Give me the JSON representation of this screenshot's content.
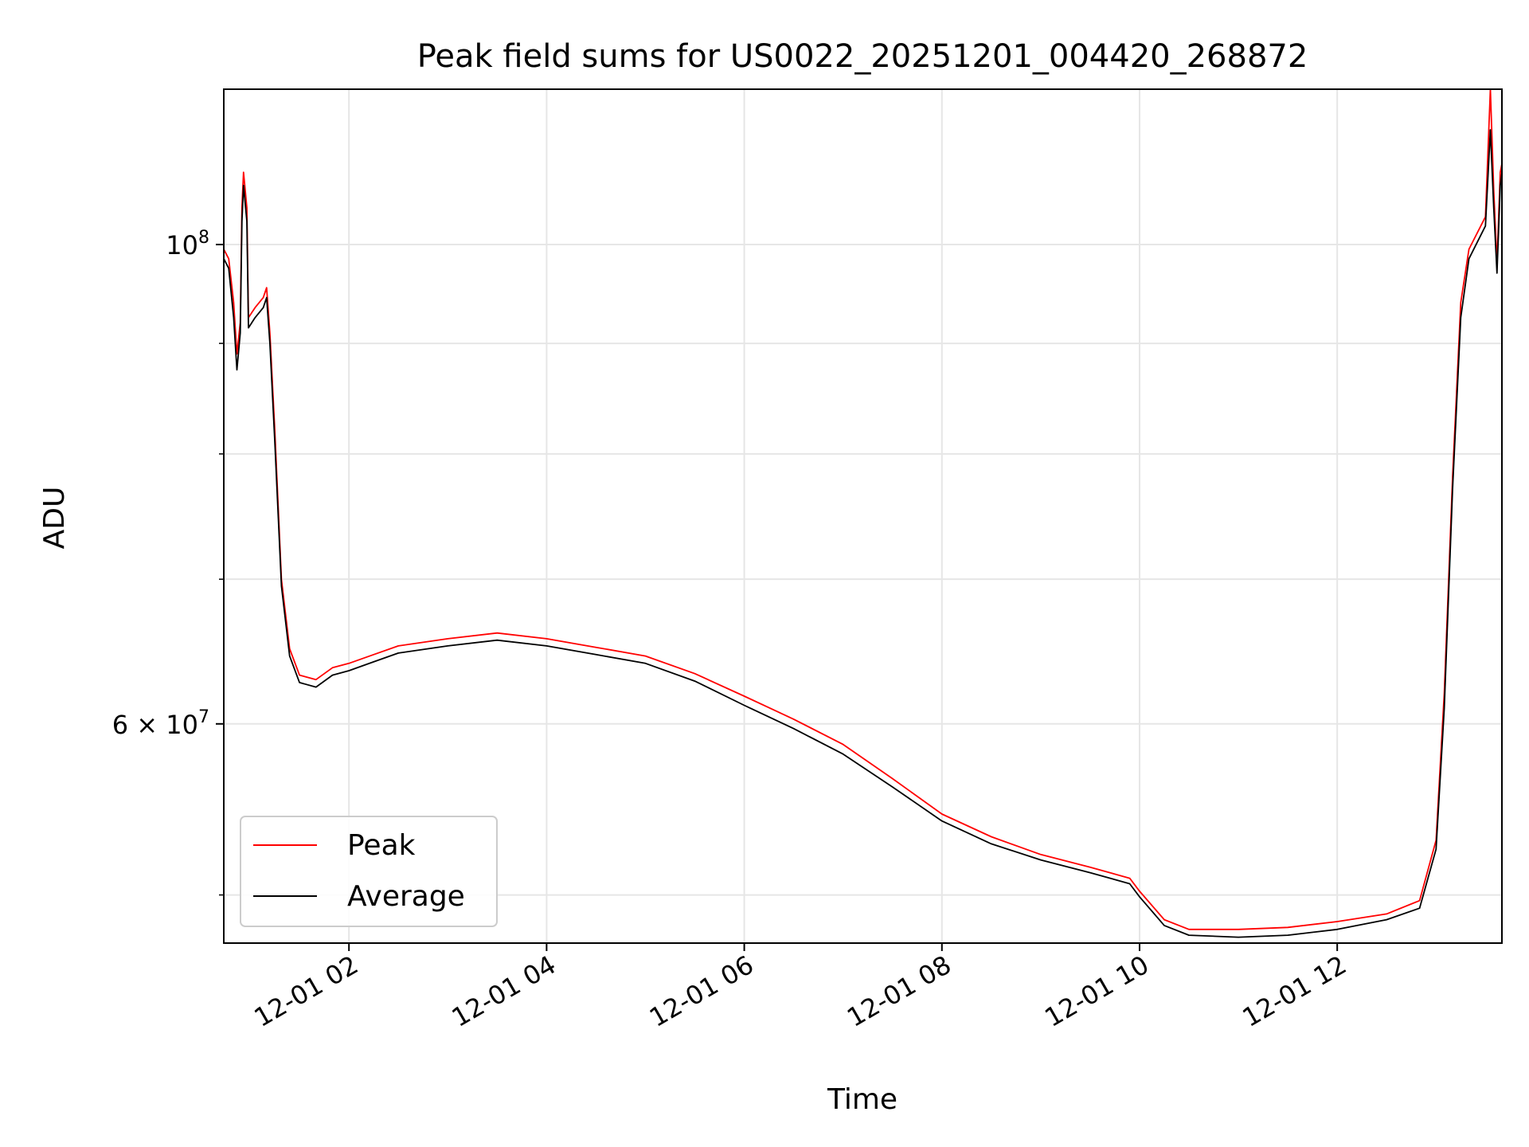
{
  "chart_data": {
    "type": "line",
    "title": "Peak field sums for US0022_20251201_004420_268872",
    "xlabel": "Time",
    "ylabel": "ADU",
    "x_axis": {
      "kind": "time",
      "range": [
        "2025-12-01 00:44",
        "2025-12-01 13:40"
      ],
      "ticks": [
        {
          "value": "2025-12-01 02:00",
          "label": "12-01 02"
        },
        {
          "value": "2025-12-01 04:00",
          "label": "12-01 04"
        },
        {
          "value": "2025-12-01 06:00",
          "label": "12-01 06"
        },
        {
          "value": "2025-12-01 08:00",
          "label": "12-01 08"
        },
        {
          "value": "2025-12-01 10:00",
          "label": "12-01 10"
        },
        {
          "value": "2025-12-01 12:00",
          "label": "12-01 12"
        }
      ]
    },
    "y_axis": {
      "scale": "log",
      "range": [
        47500000,
        118000000
      ],
      "labeled_ticks": [
        {
          "value": 60000000,
          "base": "6",
          "times": "×",
          "exp_base": "10",
          "exp": "7"
        },
        {
          "value": 100000000,
          "base": "",
          "times": "",
          "exp_base": "10",
          "exp": "8"
        }
      ],
      "minor_gridlines": [
        50000000,
        60000000,
        70000000,
        80000000,
        90000000,
        100000000
      ]
    },
    "grid": true,
    "legend": {
      "position": "lower-left",
      "entries": [
        {
          "name": "Peak",
          "color": "#ff0000"
        },
        {
          "name": "Average",
          "color": "#000000"
        }
      ]
    },
    "series": [
      {
        "name": "Peak",
        "color": "#ff0000",
        "points": [
          [
            "2025-12-01 00:44",
            99500000
          ],
          [
            "2025-12-01 00:47",
            98500000
          ],
          [
            "2025-12-01 00:50",
            94000000
          ],
          [
            "2025-12-01 00:52",
            89000000
          ],
          [
            "2025-12-01 00:54",
            92000000
          ],
          [
            "2025-12-01 00:55",
            104000000
          ],
          [
            "2025-12-01 00:56",
            108000000
          ],
          [
            "2025-12-01 00:58",
            104000000
          ],
          [
            "2025-12-01 00:59",
            92500000
          ],
          [
            "2025-12-01 01:03",
            93500000
          ],
          [
            "2025-12-01 01:08",
            94500000
          ],
          [
            "2025-12-01 01:10",
            95500000
          ],
          [
            "2025-12-01 01:12",
            91000000
          ],
          [
            "2025-12-01 01:15",
            82000000
          ],
          [
            "2025-12-01 01:19",
            70000000
          ],
          [
            "2025-12-01 01:24",
            65000000
          ],
          [
            "2025-12-01 01:30",
            63200000
          ],
          [
            "2025-12-01 01:40",
            62900000
          ],
          [
            "2025-12-01 01:50",
            63700000
          ],
          [
            "2025-12-01 02:00",
            64000000
          ],
          [
            "2025-12-01 02:15",
            64600000
          ],
          [
            "2025-12-01 02:30",
            65200000
          ],
          [
            "2025-12-01 03:00",
            65700000
          ],
          [
            "2025-12-01 03:30",
            66100000
          ],
          [
            "2025-12-01 04:00",
            65700000
          ],
          [
            "2025-12-01 04:30",
            65100000
          ],
          [
            "2025-12-01 05:00",
            64500000
          ],
          [
            "2025-12-01 05:30",
            63300000
          ],
          [
            "2025-12-01 06:00",
            61800000
          ],
          [
            "2025-12-01 06:30",
            60300000
          ],
          [
            "2025-12-01 07:00",
            58700000
          ],
          [
            "2025-12-01 07:30",
            56600000
          ],
          [
            "2025-12-01 08:00",
            54500000
          ],
          [
            "2025-12-01 08:30",
            53200000
          ],
          [
            "2025-12-01 09:00",
            52200000
          ],
          [
            "2025-12-01 09:30",
            51500000
          ],
          [
            "2025-12-01 09:54",
            50900000
          ],
          [
            "2025-12-01 10:00",
            50200000
          ],
          [
            "2025-12-01 10:15",
            48700000
          ],
          [
            "2025-12-01 10:30",
            48200000
          ],
          [
            "2025-12-01 11:00",
            48200000
          ],
          [
            "2025-12-01 11:30",
            48300000
          ],
          [
            "2025-12-01 12:00",
            48600000
          ],
          [
            "2025-12-01 12:30",
            49000000
          ],
          [
            "2025-12-01 12:50",
            49700000
          ],
          [
            "2025-12-01 13:00",
            53000000
          ],
          [
            "2025-12-01 13:05",
            62000000
          ],
          [
            "2025-12-01 13:10",
            78000000
          ],
          [
            "2025-12-01 13:15",
            94000000
          ],
          [
            "2025-12-01 13:20",
            99500000
          ],
          [
            "2025-12-01 13:30",
            103000000
          ],
          [
            "2025-12-01 13:33",
            118000000
          ],
          [
            "2025-12-01 13:35",
            106000000
          ],
          [
            "2025-12-01 13:37",
            98000000
          ],
          [
            "2025-12-01 13:39",
            108000000
          ],
          [
            "2025-12-01 13:40",
            109000000
          ]
        ]
      },
      {
        "name": "Average",
        "color": "#000000",
        "points": [
          [
            "2025-12-01 00:44",
            98500000
          ],
          [
            "2025-12-01 00:47",
            97500000
          ],
          [
            "2025-12-01 00:50",
            92500000
          ],
          [
            "2025-12-01 00:52",
            87500000
          ],
          [
            "2025-12-01 00:54",
            91000000
          ],
          [
            "2025-12-01 00:55",
            102500000
          ],
          [
            "2025-12-01 00:56",
            106500000
          ],
          [
            "2025-12-01 00:58",
            102500000
          ],
          [
            "2025-12-01 00:59",
            91500000
          ],
          [
            "2025-12-01 01:03",
            92500000
          ],
          [
            "2025-12-01 01:08",
            93500000
          ],
          [
            "2025-12-01 01:10",
            94500000
          ],
          [
            "2025-12-01 01:12",
            90000000
          ],
          [
            "2025-12-01 01:15",
            81000000
          ],
          [
            "2025-12-01 01:19",
            69500000
          ],
          [
            "2025-12-01 01:24",
            64500000
          ],
          [
            "2025-12-01 01:30",
            62700000
          ],
          [
            "2025-12-01 01:40",
            62400000
          ],
          [
            "2025-12-01 01:50",
            63200000
          ],
          [
            "2025-12-01 02:00",
            63500000
          ],
          [
            "2025-12-01 02:15",
            64100000
          ],
          [
            "2025-12-01 02:30",
            64700000
          ],
          [
            "2025-12-01 03:00",
            65200000
          ],
          [
            "2025-12-01 03:30",
            65600000
          ],
          [
            "2025-12-01 04:00",
            65200000
          ],
          [
            "2025-12-01 04:30",
            64600000
          ],
          [
            "2025-12-01 05:00",
            64000000
          ],
          [
            "2025-12-01 05:30",
            62800000
          ],
          [
            "2025-12-01 06:00",
            61200000
          ],
          [
            "2025-12-01 06:30",
            59700000
          ],
          [
            "2025-12-01 07:00",
            58100000
          ],
          [
            "2025-12-01 07:30",
            56100000
          ],
          [
            "2025-12-01 08:00",
            54100000
          ],
          [
            "2025-12-01 08:30",
            52800000
          ],
          [
            "2025-12-01 09:00",
            51900000
          ],
          [
            "2025-12-01 09:30",
            51200000
          ],
          [
            "2025-12-01 09:54",
            50600000
          ],
          [
            "2025-12-01 10:00",
            49900000
          ],
          [
            "2025-12-01 10:15",
            48400000
          ],
          [
            "2025-12-01 10:30",
            47900000
          ],
          [
            "2025-12-01 11:00",
            47800000
          ],
          [
            "2025-12-01 11:30",
            47900000
          ],
          [
            "2025-12-01 12:00",
            48200000
          ],
          [
            "2025-12-01 12:30",
            48700000
          ],
          [
            "2025-12-01 12:50",
            49300000
          ],
          [
            "2025-12-01 13:00",
            52500000
          ],
          [
            "2025-12-01 13:05",
            61000000
          ],
          [
            "2025-12-01 13:10",
            77000000
          ],
          [
            "2025-12-01 13:15",
            92500000
          ],
          [
            "2025-12-01 13:20",
            98500000
          ],
          [
            "2025-12-01 13:30",
            102000000
          ],
          [
            "2025-12-01 13:33",
            113000000
          ],
          [
            "2025-12-01 13:35",
            104000000
          ],
          [
            "2025-12-01 13:37",
            97000000
          ],
          [
            "2025-12-01 13:39",
            106500000
          ],
          [
            "2025-12-01 13:40",
            108000000
          ]
        ]
      }
    ]
  }
}
